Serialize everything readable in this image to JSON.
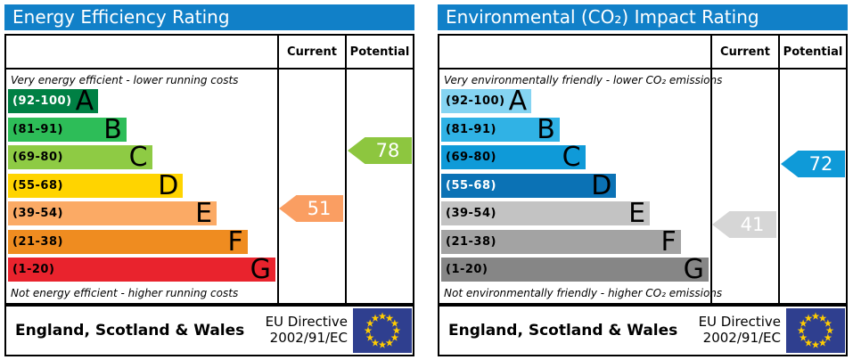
{
  "theme": {
    "header_bg": "#1180c8",
    "border_color": "#000000",
    "flag_blue": "#2f3f8f",
    "flag_star": "#ffcc00",
    "arrow_text": "#ffffff"
  },
  "panels": [
    {
      "title": "Energy Efficiency Rating",
      "columns": {
        "current": "Current",
        "potential": "Potential"
      },
      "top_caption": "Very energy efficient - lower running costs",
      "bottom_caption": "Not energy efficient - higher running costs",
      "bands": [
        {
          "letter": "A",
          "range": "(92-100)",
          "color": "#008044",
          "range_color": "#ffffff",
          "width": "33.5%"
        },
        {
          "letter": "B",
          "range": "(81-91)",
          "color": "#2dbd58",
          "range_color": "#000000",
          "width": "44%"
        },
        {
          "letter": "C",
          "range": "(69-80)",
          "color": "#8ecb44",
          "range_color": "#000000",
          "width": "53.5%"
        },
        {
          "letter": "D",
          "range": "(55-68)",
          "color": "#ffd400",
          "range_color": "#000000",
          "width": "65%"
        },
        {
          "letter": "E",
          "range": "(39-54)",
          "color": "#fbaa65",
          "range_color": "#000000",
          "width": "77.5%"
        },
        {
          "letter": "F",
          "range": "(21-38)",
          "color": "#ef8c20",
          "range_color": "#000000",
          "width": "89%"
        },
        {
          "letter": "G",
          "range": "(1-20)",
          "color": "#e9232d",
          "range_color": "#000000",
          "width": "99.3%"
        }
      ],
      "current": {
        "value": "51",
        "color": "#fa9e62"
      },
      "potential": {
        "value": "78",
        "color": "#8dc63f"
      },
      "footer": {
        "region": "England, Scotland & Wales",
        "directive_line1": "EU Directive",
        "directive_line2": "2002/91/EC"
      }
    },
    {
      "title": "Environmental (CO₂) Impact Rating",
      "columns": {
        "current": "Current",
        "potential": "Potential"
      },
      "top_caption": "Very environmentally friendly - lower CO₂ emissions",
      "bottom_caption": "Not environmentally friendly - higher CO₂ emissions",
      "bands": [
        {
          "letter": "A",
          "range": "(92-100)",
          "color": "#85d4f2",
          "range_color": "#000000",
          "width": "33.5%"
        },
        {
          "letter": "B",
          "range": "(81-91)",
          "color": "#30b2e5",
          "range_color": "#000000",
          "width": "44%"
        },
        {
          "letter": "C",
          "range": "(69-80)",
          "color": "#0f9ad8",
          "range_color": "#000000",
          "width": "53.5%"
        },
        {
          "letter": "D",
          "range": "(55-68)",
          "color": "#0b72b5",
          "range_color": "#ffffff",
          "width": "65%"
        },
        {
          "letter": "E",
          "range": "(39-54)",
          "color": "#c3c3c3",
          "range_color": "#000000",
          "width": "77.5%"
        },
        {
          "letter": "F",
          "range": "(21-38)",
          "color": "#a3a3a3",
          "range_color": "#000000",
          "width": "89%"
        },
        {
          "letter": "G",
          "range": "(1-20)",
          "color": "#868686",
          "range_color": "#000000",
          "width": "99.3%"
        }
      ],
      "current": {
        "value": "41",
        "color": "#d6d6d6"
      },
      "potential": {
        "value": "72",
        "color": "#0f9ad8"
      },
      "footer": {
        "region": "England, Scotland & Wales",
        "directive_line1": "EU Directive",
        "directive_line2": "2002/91/EC"
      }
    }
  ],
  "chart_data": [
    {
      "type": "bar",
      "orientation": "horizontal",
      "title": "Energy Efficiency Rating",
      "categories": [
        "A",
        "B",
        "C",
        "D",
        "E",
        "F",
        "G"
      ],
      "category_ranges": [
        "92-100",
        "81-91",
        "69-80",
        "55-68",
        "39-54",
        "21-38",
        "1-20"
      ],
      "bar_lengths_pct": [
        33.5,
        44,
        53.5,
        65,
        77.5,
        89,
        99.3
      ],
      "markers": {
        "current": 51,
        "potential": 78
      },
      "scale": [
        1,
        100
      ],
      "annotations": [
        "Very energy efficient - lower running costs",
        "Not energy efficient - higher running costs"
      ],
      "footer": "England, Scotland & Wales · EU Directive 2002/91/EC"
    },
    {
      "type": "bar",
      "orientation": "horizontal",
      "title": "Environmental (CO₂) Impact Rating",
      "categories": [
        "A",
        "B",
        "C",
        "D",
        "E",
        "F",
        "G"
      ],
      "category_ranges": [
        "92-100",
        "81-91",
        "69-80",
        "55-68",
        "39-54",
        "21-38",
        "1-20"
      ],
      "bar_lengths_pct": [
        33.5,
        44,
        53.5,
        65,
        77.5,
        89,
        99.3
      ],
      "markers": {
        "current": 41,
        "potential": 72
      },
      "scale": [
        1,
        100
      ],
      "annotations": [
        "Very environmentally friendly - lower CO₂ emissions",
        "Not environmentally friendly - higher CO₂ emissions"
      ],
      "footer": "England, Scotland & Wales · EU Directive 2002/91/EC"
    }
  ]
}
